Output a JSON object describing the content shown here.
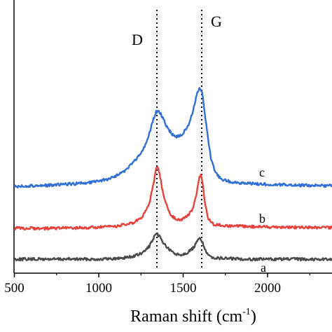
{
  "chart_data": {
    "type": "line",
    "xlabel": "Raman shift (cm",
    "xlabel_sup": "-1",
    "xlabel_close": ")",
    "ylabel": "",
    "xlim": [
      500,
      2400
    ],
    "x_ticks": [
      500,
      1000,
      1500,
      2000
    ],
    "x_tick_labels": [
      "500",
      "1000",
      "1500",
      "2000"
    ],
    "grid": false,
    "reference_lines": [
      {
        "label": "D",
        "x": 1345
      },
      {
        "label": "G",
        "x": 1600
      }
    ],
    "series": [
      {
        "name": "a",
        "color": "#4a4a4a",
        "points": [
          [
            500,
            0.0
          ],
          [
            700,
            0.0
          ],
          [
            900,
            0.0
          ],
          [
            1000,
            0.0
          ],
          [
            1100,
            0.01
          ],
          [
            1200,
            0.05
          ],
          [
            1260,
            0.12
          ],
          [
            1300,
            0.26
          ],
          [
            1330,
            0.44
          ],
          [
            1345,
            0.5
          ],
          [
            1360,
            0.45
          ],
          [
            1380,
            0.34
          ],
          [
            1400,
            0.25
          ],
          [
            1430,
            0.15
          ],
          [
            1460,
            0.1
          ],
          [
            1480,
            0.09
          ],
          [
            1500,
            0.1
          ],
          [
            1530,
            0.14
          ],
          [
            1560,
            0.22
          ],
          [
            1585,
            0.36
          ],
          [
            1600,
            0.42
          ],
          [
            1615,
            0.34
          ],
          [
            1630,
            0.18
          ],
          [
            1650,
            0.06
          ],
          [
            1700,
            0.02
          ],
          [
            1800,
            0.01
          ],
          [
            1900,
            0.0
          ],
          [
            2000,
            0.0
          ],
          [
            2200,
            0.0
          ],
          [
            2400,
            0.0
          ]
        ]
      },
      {
        "name": "b",
        "color": "#e8413c",
        "points": [
          [
            500,
            0.0
          ],
          [
            700,
            0.0
          ],
          [
            900,
            0.01
          ],
          [
            1000,
            0.02
          ],
          [
            1100,
            0.04
          ],
          [
            1200,
            0.1
          ],
          [
            1260,
            0.22
          ],
          [
            1300,
            0.5
          ],
          [
            1325,
            0.9
          ],
          [
            1340,
            1.2
          ],
          [
            1350,
            1.22
          ],
          [
            1365,
            1.0
          ],
          [
            1380,
            0.72
          ],
          [
            1400,
            0.46
          ],
          [
            1430,
            0.26
          ],
          [
            1460,
            0.18
          ],
          [
            1480,
            0.17
          ],
          [
            1500,
            0.19
          ],
          [
            1530,
            0.26
          ],
          [
            1560,
            0.4
          ],
          [
            1580,
            0.7
          ],
          [
            1595,
            1.02
          ],
          [
            1605,
            1.05
          ],
          [
            1618,
            0.82
          ],
          [
            1632,
            0.44
          ],
          [
            1650,
            0.18
          ],
          [
            1680,
            0.08
          ],
          [
            1750,
            0.05
          ],
          [
            1850,
            0.04
          ],
          [
            2000,
            0.03
          ],
          [
            2200,
            0.02
          ],
          [
            2400,
            0.01
          ]
        ]
      },
      {
        "name": "c",
        "color": "#2f6fd6",
        "points": [
          [
            500,
            0.0
          ],
          [
            600,
            0.01
          ],
          [
            700,
            0.02
          ],
          [
            800,
            0.04
          ],
          [
            900,
            0.06
          ],
          [
            1000,
            0.1
          ],
          [
            1050,
            0.14
          ],
          [
            1100,
            0.2
          ],
          [
            1150,
            0.3
          ],
          [
            1200,
            0.45
          ],
          [
            1250,
            0.65
          ],
          [
            1280,
            0.85
          ],
          [
            1300,
            1.05
          ],
          [
            1320,
            1.3
          ],
          [
            1340,
            1.48
          ],
          [
            1350,
            1.5
          ],
          [
            1365,
            1.45
          ],
          [
            1380,
            1.35
          ],
          [
            1400,
            1.2
          ],
          [
            1430,
            1.05
          ],
          [
            1460,
            0.98
          ],
          [
            1480,
            1.0
          ],
          [
            1500,
            1.06
          ],
          [
            1530,
            1.2
          ],
          [
            1560,
            1.5
          ],
          [
            1575,
            1.75
          ],
          [
            1590,
            1.92
          ],
          [
            1600,
            1.95
          ],
          [
            1612,
            1.86
          ],
          [
            1625,
            1.55
          ],
          [
            1645,
            1.0
          ],
          [
            1665,
            0.55
          ],
          [
            1690,
            0.28
          ],
          [
            1720,
            0.15
          ],
          [
            1780,
            0.09
          ],
          [
            1850,
            0.06
          ],
          [
            2000,
            0.04
          ],
          [
            2200,
            0.02
          ],
          [
            2400,
            0.01
          ]
        ]
      }
    ]
  }
}
